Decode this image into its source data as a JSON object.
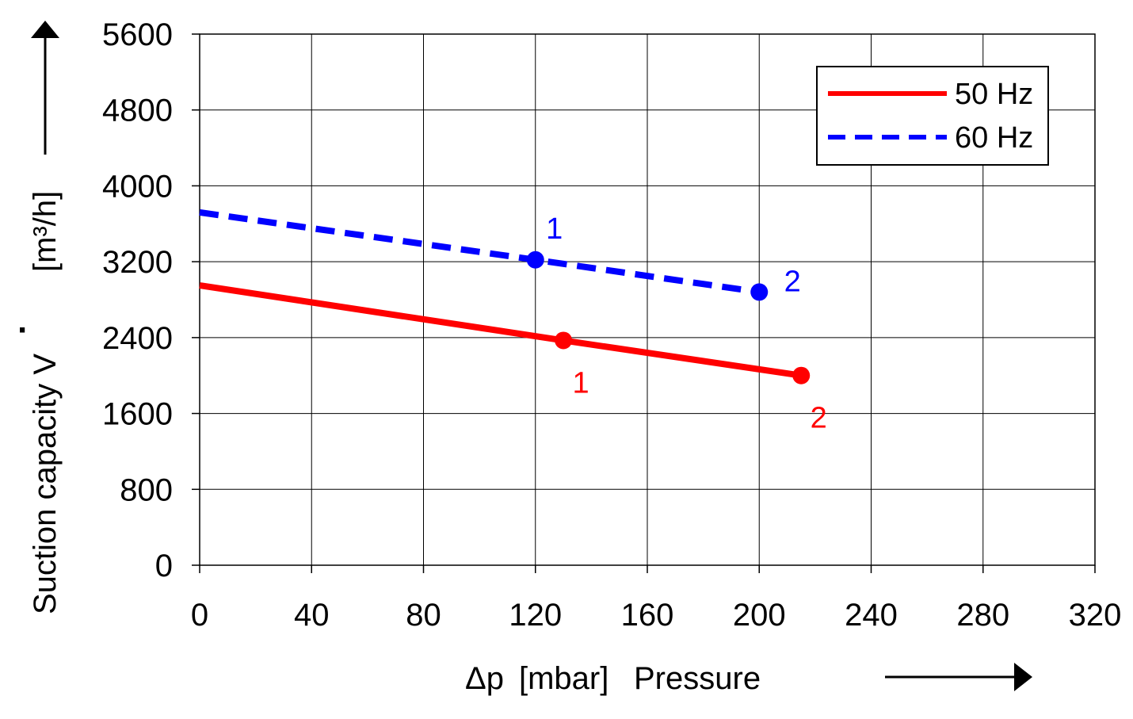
{
  "chart_data": {
    "type": "line",
    "title": "",
    "x": [
      0,
      40,
      80,
      120,
      160,
      200,
      240,
      280,
      320
    ],
    "xlim": [
      0,
      320
    ],
    "ylim": [
      0,
      5600
    ],
    "xticks": [
      "0",
      "40",
      "80",
      "120",
      "160",
      "200",
      "240",
      "280",
      "320"
    ],
    "yticks": [
      "0",
      "800",
      "1600",
      "2400",
      "3200",
      "4000",
      "4800",
      "5600"
    ],
    "xlabel": {
      "symbol": "Δp",
      "unit": "[mbar]",
      "name": "Pressure"
    },
    "ylabel": {
      "name": "Suction capacity V",
      "dot": "·",
      "unit": "[m³/h]"
    },
    "grid": true,
    "legend_position": "top-right",
    "series": [
      {
        "name": "50 Hz",
        "color": "#ff0000",
        "style": "solid",
        "line": [
          [
            0,
            2950
          ],
          [
            130,
            2370
          ],
          [
            215,
            2000
          ]
        ],
        "points": [
          {
            "x": 130,
            "y": 2370,
            "label": "1"
          },
          {
            "x": 215,
            "y": 2000,
            "label": "2"
          }
        ]
      },
      {
        "name": "60 Hz",
        "color": "#0000ff",
        "style": "dashed",
        "line": [
          [
            0,
            3720
          ],
          [
            120,
            3220
          ],
          [
            200,
            2880
          ]
        ],
        "points": [
          {
            "x": 120,
            "y": 3220,
            "label": "1"
          },
          {
            "x": 200,
            "y": 2880,
            "label": "2"
          }
        ]
      }
    ]
  }
}
